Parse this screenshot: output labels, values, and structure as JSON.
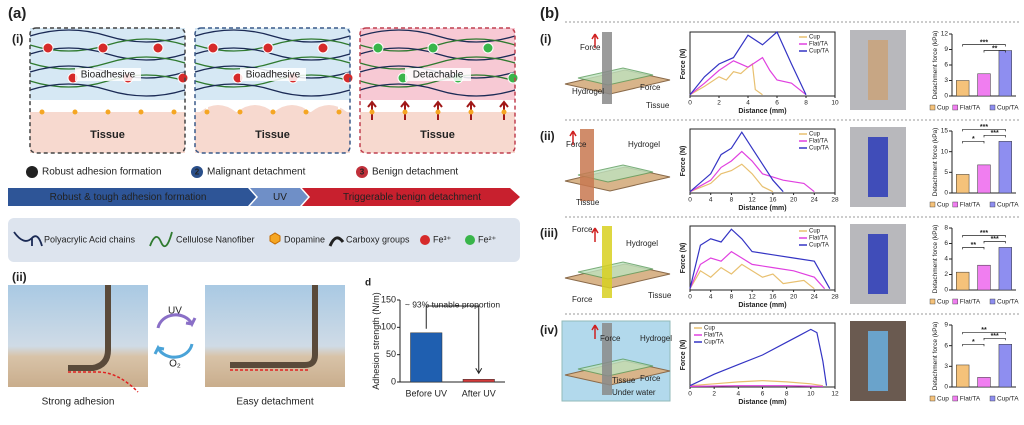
{
  "panel_a": {
    "label": "(a)",
    "part_i": "(i)",
    "part_ii": "(ii)",
    "schematic": {
      "labels": [
        "Bioadhesive",
        "Bioadhesive",
        "Detachable"
      ],
      "tissue": [
        "Tissue",
        "Tissue",
        "Tissue"
      ]
    },
    "steps": [
      {
        "number": "1",
        "text": "Robust adhesion formation"
      },
      {
        "number": "2",
        "text": "Malignant detachment"
      },
      {
        "number": "3",
        "text": "Benign detachment"
      }
    ],
    "process": [
      "Robust & tough adhesion formation",
      "UV",
      "Triggerable benign detachment"
    ],
    "legend": [
      "Polyacrylic Acid chains",
      "Cellulose Nanofiber",
      "Dopamine",
      "Carboxy groups",
      "Fe³⁺",
      "Fe²⁺"
    ],
    "photos": {
      "left": "Strong adhesion",
      "right": "Easy detachment",
      "cycle_top": "UV",
      "cycle_bottom": "O₂"
    },
    "chart": {
      "type": "bar",
      "panel_letter": "d",
      "ylabel": "Adhesion strength (N/m)",
      "categories": [
        "Before UV",
        "After UV"
      ],
      "values": [
        90,
        5
      ],
      "colors": [
        "#1f5fb0",
        "#d43a3a"
      ],
      "ylim": [
        0,
        150
      ],
      "yticks": [
        0,
        50,
        100,
        150
      ],
      "annotation": "~ 93% tunable proportion"
    }
  },
  "panel_b": {
    "label": "(b)",
    "rows": [
      {
        "label": "(i)",
        "schematic": [
          "Force",
          "Force",
          "Hydrogel",
          "Tissue"
        ],
        "force_chart": {
          "type": "line",
          "xlabel": "Distance (mm)",
          "ylabel": "Force (N)",
          "xlim": [
            0,
            10
          ],
          "xticks": [
            0,
            2,
            4,
            6,
            8,
            10
          ],
          "ylim": [
            0,
            1
          ],
          "legend": "upper right",
          "series": [
            {
              "name": "Cup",
              "color": "#e8c070",
              "x": [
                0,
                1,
                2,
                2.5,
                3,
                3.5,
                4,
                4.3,
                4.5,
                5
              ],
              "values": [
                0.02,
                0.15,
                0.3,
                0.25,
                0.38,
                0.35,
                0.45,
                0.5,
                0.1,
                0.02
              ]
            },
            {
              "name": "Flat/TA",
              "color": "#e040e0",
              "x": [
                0,
                1,
                2,
                3,
                4,
                5,
                5.5,
                6,
                7,
                8
              ],
              "values": [
                0.02,
                0.2,
                0.4,
                0.55,
                0.45,
                0.6,
                0.4,
                0.25,
                0.2,
                0.02
              ]
            },
            {
              "name": "Cup/TA",
              "color": "#3434c4",
              "x": [
                0,
                1,
                2,
                3,
                4,
                5,
                6,
                7,
                8
              ],
              "values": [
                0.02,
                0.3,
                0.5,
                0.6,
                0.95,
                0.8,
                1.0,
                0.5,
                0.02
              ]
            }
          ]
        },
        "bar_chart": {
          "type": "bar",
          "ylabel": "Detachment force (kPa)",
          "categories": [
            "Cup",
            "Flat/TA",
            "Cup/TA"
          ],
          "values": [
            3,
            4.3,
            8.8
          ],
          "colors": [
            "#f5c27a",
            "#f07ef0",
            "#8e8ef0"
          ],
          "ylim": [
            0,
            12
          ],
          "yticks": [
            0,
            3,
            6,
            9,
            12
          ],
          "significance": [
            "***",
            "**"
          ]
        }
      },
      {
        "label": "(ii)",
        "schematic": [
          "Force",
          "Hydrogel",
          "Tissue"
        ],
        "force_chart": {
          "type": "line",
          "xlabel": "Distance (mm)",
          "ylabel": "Force (N)",
          "xlim": [
            0,
            28
          ],
          "xticks": [
            0,
            4,
            8,
            12,
            16,
            20,
            24,
            28
          ],
          "ylim": [
            0,
            1
          ],
          "legend": "upper right",
          "series": [
            {
              "name": "Cup",
              "color": "#e8c070",
              "x": [
                0,
                4,
                6,
                8,
                10,
                12,
                14,
                16
              ],
              "values": [
                0.02,
                0.15,
                0.3,
                0.35,
                0.45,
                0.3,
                0.1,
                0.02
              ]
            },
            {
              "name": "Flat/TA",
              "color": "#e040e0",
              "x": [
                0,
                4,
                6,
                8,
                10,
                12,
                14,
                18,
                22,
                24
              ],
              "values": [
                0.02,
                0.2,
                0.4,
                0.5,
                0.65,
                0.5,
                0.3,
                0.2,
                0.15,
                0.02
              ]
            },
            {
              "name": "Cup/TA",
              "color": "#3434c4",
              "x": [
                0,
                4,
                6,
                8,
                10,
                12,
                14,
                16,
                18
              ],
              "values": [
                0.02,
                0.3,
                0.6,
                0.7,
                0.95,
                0.7,
                0.45,
                0.2,
                0.02
              ]
            }
          ]
        },
        "bar_chart": {
          "type": "bar",
          "ylabel": "Detachment force (kPa)",
          "categories": [
            "Cup",
            "Flat/TA",
            "Cup/TA"
          ],
          "values": [
            4.5,
            6.8,
            12.5
          ],
          "colors": [
            "#f5c27a",
            "#f07ef0",
            "#8e8ef0"
          ],
          "ylim": [
            0,
            15
          ],
          "yticks": [
            0,
            5,
            10,
            15
          ],
          "significance": [
            "***",
            "***",
            "*"
          ]
        }
      },
      {
        "label": "(iii)",
        "schematic": [
          "Hydrogel",
          "Force",
          "Force",
          "Tissue"
        ],
        "force_chart": {
          "type": "line",
          "xlabel": "Distance (mm)",
          "ylabel": "Force (N)",
          "xlim": [
            0,
            28
          ],
          "xticks": [
            0,
            4,
            8,
            12,
            16,
            20,
            24,
            28
          ],
          "ylim": [
            0,
            1
          ],
          "legend": "upper right",
          "series": [
            {
              "name": "Cup",
              "color": "#e8c070",
              "x": [
                0,
                2,
                4,
                6,
                8,
                10,
                14,
                16,
                18,
                22,
                24
              ],
              "values": [
                0.02,
                0.3,
                0.2,
                0.35,
                0.25,
                0.4,
                0.2,
                0.25,
                0.1,
                0.15,
                0.02
              ]
            },
            {
              "name": "Flat/TA",
              "color": "#e040e0",
              "x": [
                0,
                2,
                4,
                6,
                8,
                10,
                12,
                16,
                20,
                24,
                26
              ],
              "values": [
                0.02,
                0.4,
                0.5,
                0.45,
                0.6,
                0.5,
                0.4,
                0.35,
                0.3,
                0.2,
                0.02
              ]
            },
            {
              "name": "Cup/TA",
              "color": "#3434c4",
              "x": [
                0,
                2,
                4,
                6,
                8,
                10,
                12,
                16,
                20,
                24,
                27
              ],
              "values": [
                0.02,
                0.7,
                0.8,
                0.75,
                0.95,
                0.8,
                0.6,
                0.55,
                0.5,
                0.45,
                0.02
              ]
            }
          ]
        },
        "bar_chart": {
          "type": "bar",
          "ylabel": "Detachment force (kPa)",
          "categories": [
            "Cup",
            "Flat/TA",
            "Cup/TA"
          ],
          "values": [
            2.3,
            3.2,
            5.5
          ],
          "colors": [
            "#f5c27a",
            "#f07ef0",
            "#8e8ef0"
          ],
          "ylim": [
            0,
            8
          ],
          "yticks": [
            0,
            2,
            4,
            6,
            8
          ],
          "significance": [
            "***",
            "***",
            "**"
          ]
        }
      },
      {
        "label": "(iv)",
        "schematic": [
          "Force",
          "Hydrogel",
          "Force",
          "Tissue",
          "Under water"
        ],
        "force_chart": {
          "type": "line",
          "xlabel": "Distance (mm)",
          "ylabel": "Force (N)",
          "xlim": [
            0,
            12
          ],
          "xticks": [
            0,
            2,
            4,
            6,
            8,
            10,
            12
          ],
          "ylim": [
            0,
            1
          ],
          "legend": "upper left",
          "series": [
            {
              "name": "Cup",
              "color": "#e8c070",
              "x": [
                0,
                2,
                4,
                6,
                8,
                10,
                11
              ],
              "values": [
                0.02,
                0.05,
                0.08,
                0.1,
                0.08,
                0.05,
                0.02
              ]
            },
            {
              "name": "Flat/TA",
              "color": "#e040e0",
              "x": [
                0,
                4,
                8,
                11
              ],
              "values": [
                0.01,
                0.02,
                0.02,
                0.01
              ]
            },
            {
              "name": "Cup/TA",
              "color": "#3434c4",
              "x": [
                0,
                2,
                4,
                6,
                8,
                9,
                10,
                10.5,
                11,
                11.3
              ],
              "values": [
                0.02,
                0.2,
                0.35,
                0.5,
                0.7,
                0.8,
                0.9,
                0.85,
                0.4,
                0.02
              ]
            }
          ]
        },
        "bar_chart": {
          "type": "bar",
          "ylabel": "Detachment force (kPa)",
          "categories": [
            "Cup",
            "Flat/TA",
            "Cup/TA"
          ],
          "values": [
            3.2,
            1.4,
            6.2
          ],
          "colors": [
            "#f5c27a",
            "#f07ef0",
            "#8e8ef0"
          ],
          "ylim": [
            0,
            9
          ],
          "yticks": [
            0,
            3,
            6,
            9
          ],
          "significance": [
            "**",
            "***",
            "*"
          ]
        }
      }
    ]
  }
}
